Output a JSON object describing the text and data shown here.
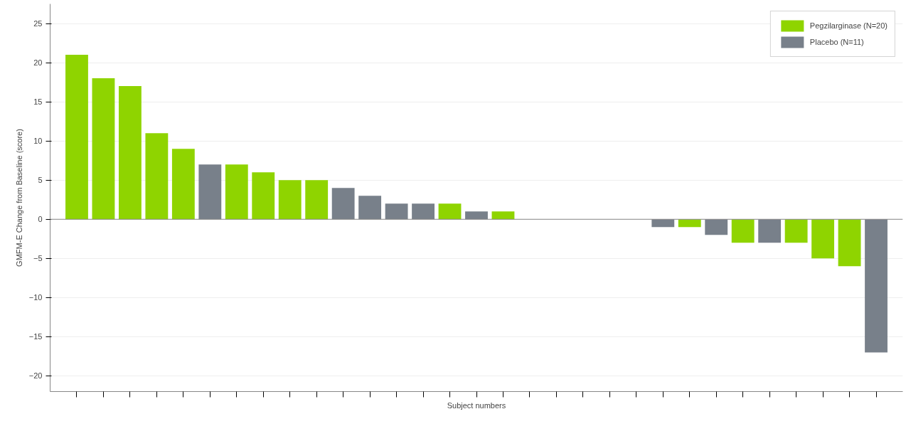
{
  "chart_data": {
    "type": "bar",
    "xlabel": "Subject numbers",
    "ylabel": "GMFM-E Change from Baseline (score)",
    "categories": [
      null,
      null,
      null,
      null,
      null,
      null,
      null,
      null,
      null,
      null,
      null,
      null,
      null,
      null,
      null,
      null,
      null,
      null,
      null,
      null,
      null,
      null,
      null,
      null,
      null,
      null,
      null,
      null,
      null,
      null,
      null
    ],
    "series": [
      {
        "name": "Pegzilarginase (N=20)",
        "color": "#8fd400",
        "values": [
          21,
          18,
          17,
          11,
          9,
          null,
          7,
          6,
          5,
          5,
          null,
          null,
          null,
          null,
          2,
          null,
          1,
          0,
          0,
          0,
          0,
          null,
          null,
          -1,
          null,
          -3,
          null,
          -3,
          -5,
          -6,
          null
        ]
      },
      {
        "name": "Placebo (N=11)",
        "color": "#78808a",
        "values": [
          null,
          null,
          null,
          null,
          null,
          7,
          null,
          null,
          null,
          null,
          4,
          3,
          2,
          2,
          null,
          1,
          null,
          null,
          null,
          null,
          null,
          0,
          -1,
          null,
          -2,
          null,
          -3,
          null,
          null,
          null,
          -17
        ]
      }
    ],
    "ylim": [
      -22,
      27.5
    ],
    "yticks": [
      -20,
      -15,
      -10,
      -5,
      0,
      5,
      10,
      15,
      20,
      25
    ],
    "grid": "y",
    "legend": "top right"
  }
}
